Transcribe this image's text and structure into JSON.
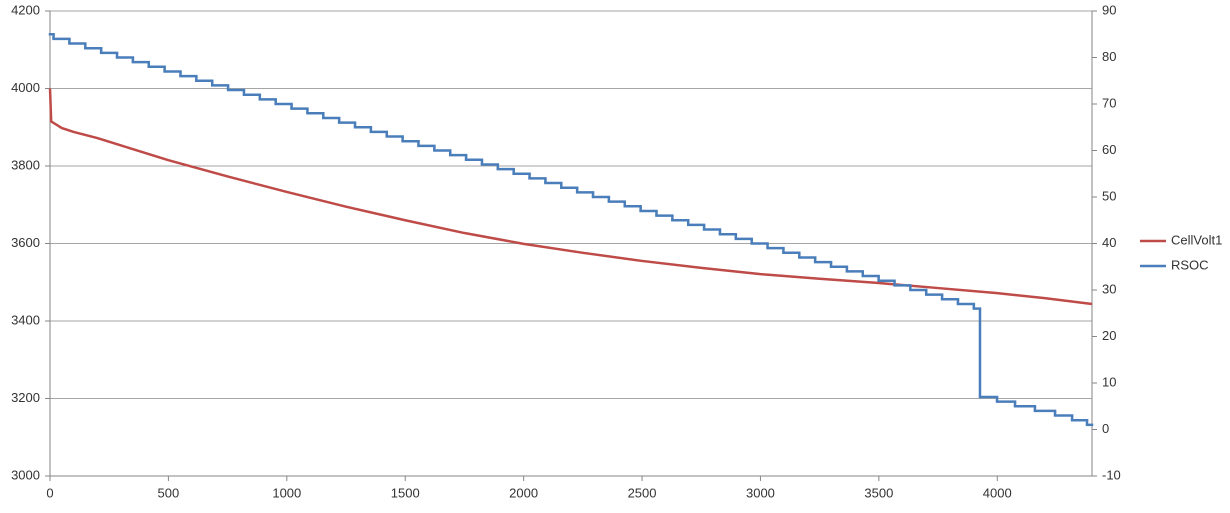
{
  "chart_data": {
    "type": "line",
    "xlim": [
      0,
      4400
    ],
    "xticks": [
      0,
      500,
      1000,
      1500,
      2000,
      2500,
      3000,
      3500,
      4000
    ],
    "ylim": [
      3000,
      4200
    ],
    "yticks": [
      3000,
      3200,
      3400,
      3600,
      3800,
      4000,
      4200
    ],
    "y2lim": [
      -10,
      90
    ],
    "y2ticks": [
      -10,
      0,
      10,
      20,
      30,
      40,
      50,
      60,
      70,
      80,
      90
    ],
    "grid": true,
    "legend": "right",
    "series": [
      {
        "name": "CellVolt1",
        "color": "#be4b48",
        "x": [
          0,
          5,
          50,
          100,
          200,
          300,
          500,
          750,
          1000,
          1250,
          1500,
          1750,
          2000,
          2250,
          2500,
          2750,
          3000,
          3250,
          3500,
          3750,
          4000,
          4200,
          4400
        ],
        "values": [
          4000,
          3915,
          3898,
          3888,
          3872,
          3853,
          3815,
          3773,
          3733,
          3695,
          3660,
          3627,
          3599,
          3576,
          3555,
          3537,
          3521,
          3509,
          3498,
          3485,
          3472,
          3459,
          3444
        ]
      },
      {
        "name": "RSOC",
        "color": "#4a7ebb",
        "axis": "y2",
        "drawstyle": "steps-post",
        "x": [
          0,
          15,
          82,
          149,
          216,
          283,
          350,
          417,
          484,
          551,
          618,
          685,
          752,
          819,
          886,
          953,
          1020,
          1087,
          1154,
          1221,
          1288,
          1355,
          1422,
          1489,
          1556,
          1623,
          1690,
          1757,
          1824,
          1891,
          1958,
          2025,
          2092,
          2159,
          2226,
          2293,
          2360,
          2427,
          2494,
          2561,
          2628,
          2695,
          2762,
          2829,
          2896,
          2963,
          3030,
          3097,
          3164,
          3231,
          3298,
          3365,
          3432,
          3499,
          3566,
          3633,
          3700,
          3767,
          3834,
          3901,
          3927,
          3999,
          4075,
          4159,
          4244,
          4316,
          4379
        ],
        "values": [
          85,
          84,
          83,
          82,
          81,
          80,
          79,
          78,
          77,
          76,
          75,
          74,
          73,
          72,
          71,
          70,
          69,
          68,
          67,
          66,
          65,
          64,
          63,
          62,
          61,
          60,
          59,
          58,
          57,
          56,
          55,
          54,
          53,
          52,
          51,
          50,
          49,
          48,
          47,
          46,
          45,
          44,
          43,
          42,
          41,
          40,
          39,
          38,
          37,
          36,
          35,
          34,
          33,
          32,
          31,
          30,
          29,
          28,
          27,
          26,
          7,
          6,
          5,
          4,
          3,
          2,
          1
        ]
      }
    ]
  }
}
